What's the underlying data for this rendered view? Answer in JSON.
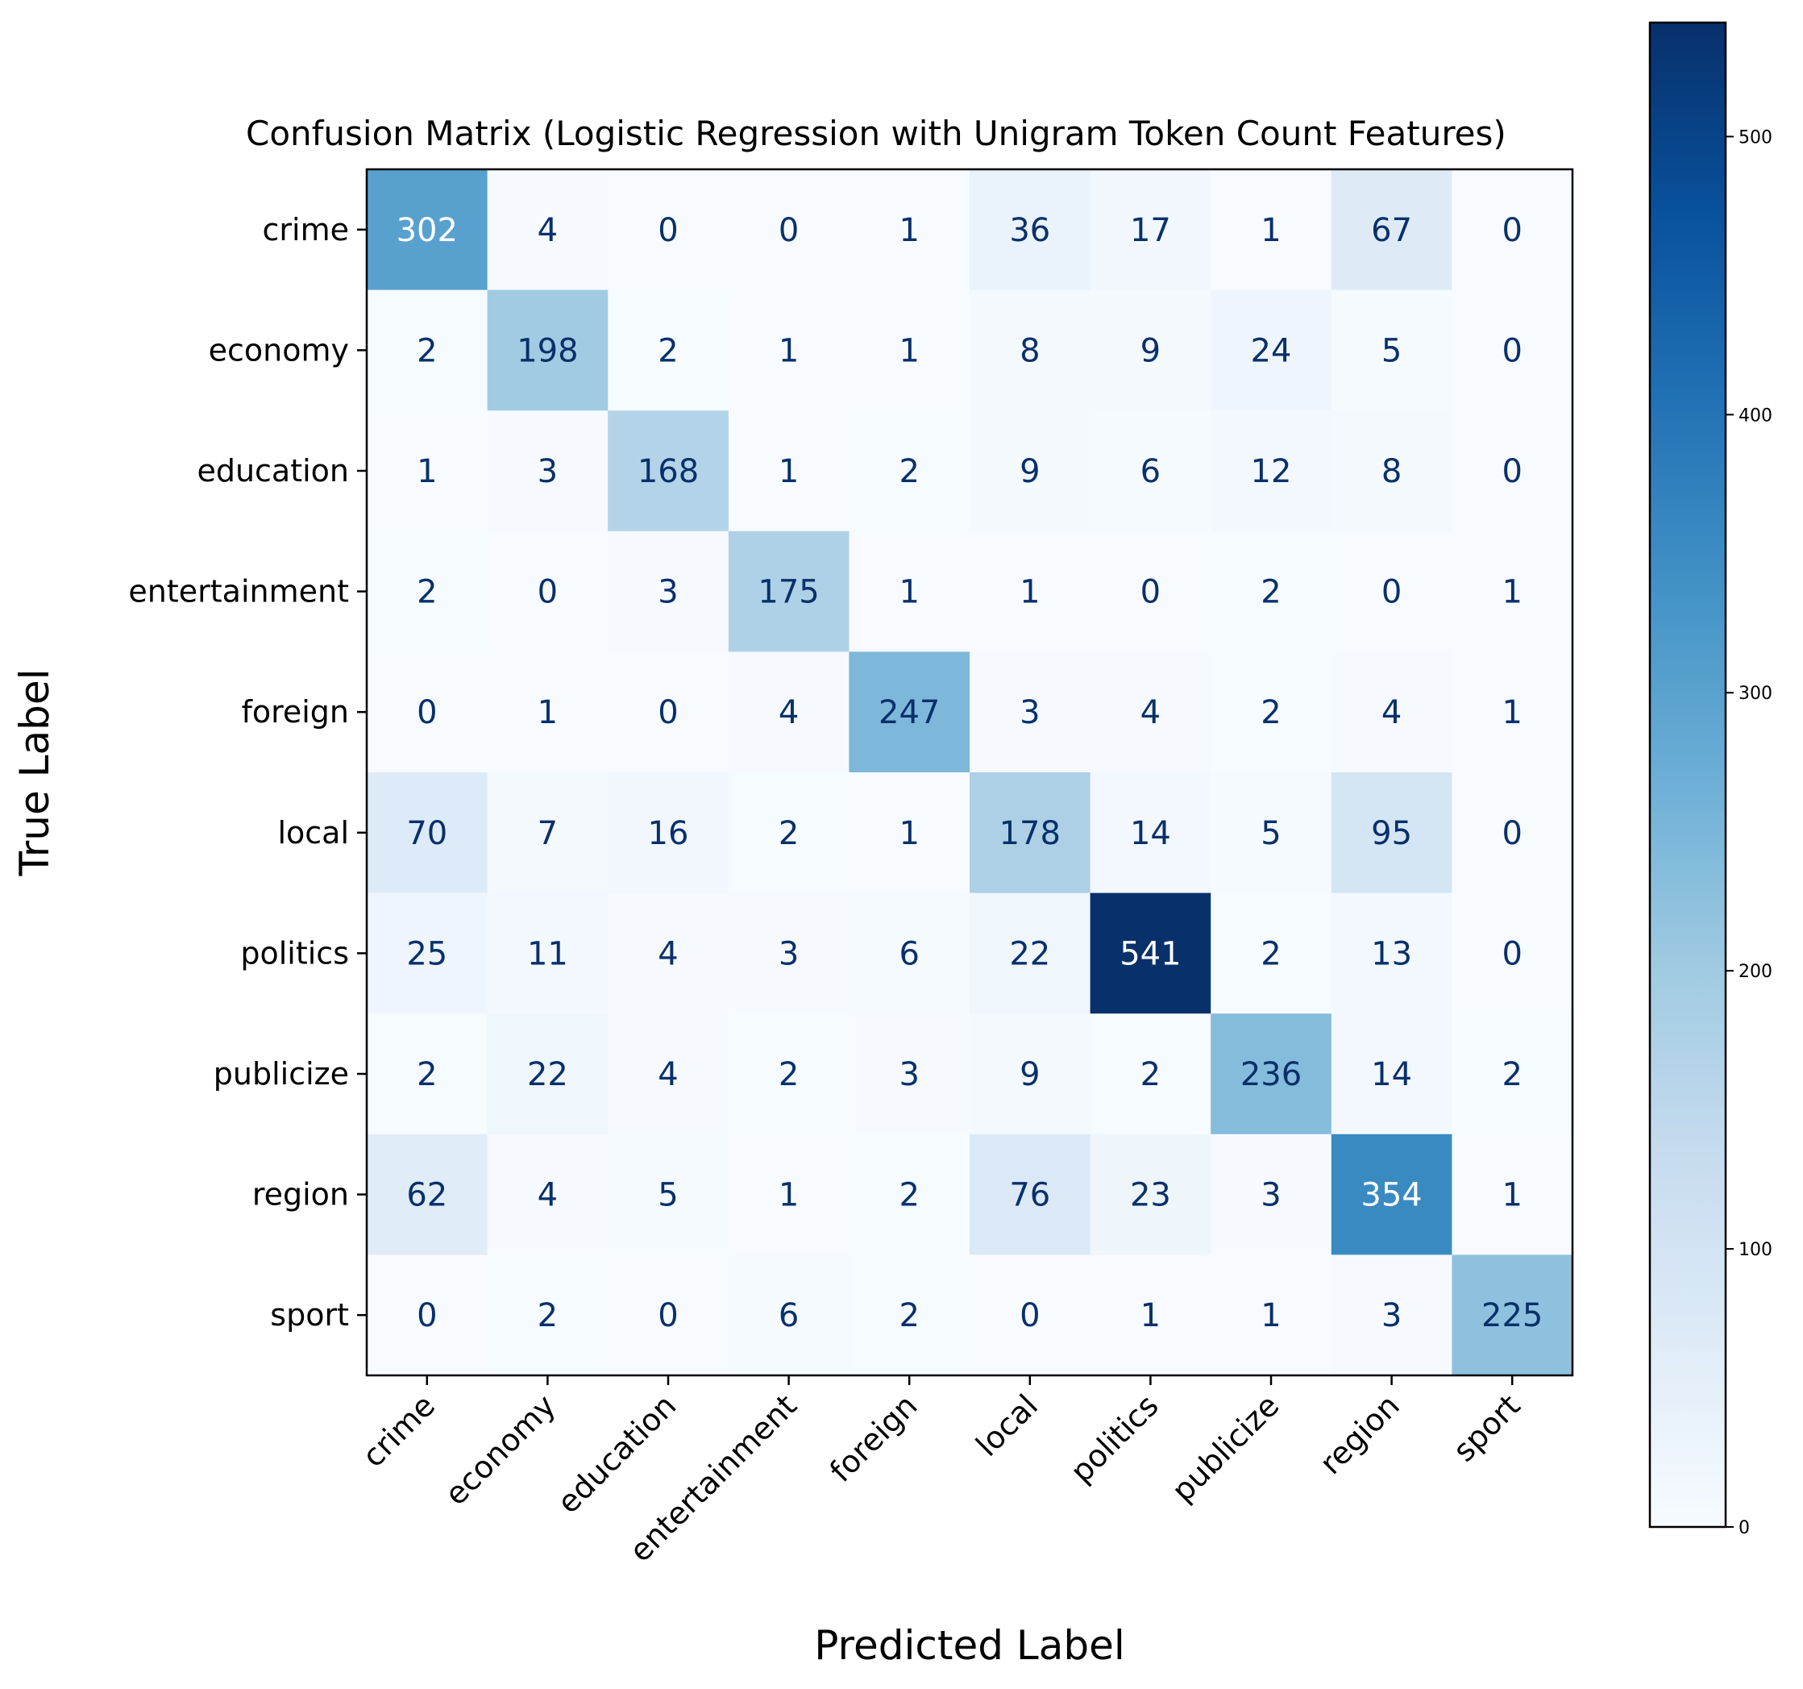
{
  "chart_data": {
    "type": "heatmap",
    "title": "Confusion Matrix (Logistic Regression with Unigram Token Count Features)",
    "xlabel": "Predicted Label",
    "ylabel": "True Label",
    "categories": [
      "crime",
      "economy",
      "education",
      "entertainment",
      "foreign",
      "local",
      "politics",
      "publicize",
      "region",
      "sport"
    ],
    "matrix": [
      [
        302,
        4,
        0,
        0,
        1,
        36,
        17,
        1,
        67,
        0
      ],
      [
        2,
        198,
        2,
        1,
        1,
        8,
        9,
        24,
        5,
        0
      ],
      [
        1,
        3,
        168,
        1,
        2,
        9,
        6,
        12,
        8,
        0
      ],
      [
        2,
        0,
        3,
        175,
        1,
        1,
        0,
        2,
        0,
        1
      ],
      [
        0,
        1,
        0,
        4,
        247,
        3,
        4,
        2,
        4,
        1
      ],
      [
        70,
        7,
        16,
        2,
        1,
        178,
        14,
        5,
        95,
        0
      ],
      [
        25,
        11,
        4,
        3,
        6,
        22,
        541,
        2,
        13,
        0
      ],
      [
        2,
        22,
        4,
        2,
        3,
        9,
        2,
        236,
        14,
        2
      ],
      [
        62,
        4,
        5,
        1,
        2,
        76,
        23,
        3,
        354,
        1
      ],
      [
        0,
        2,
        0,
        6,
        2,
        0,
        1,
        1,
        3,
        225
      ]
    ],
    "colormap": "Blues",
    "vmin": 0,
    "vmax": 541,
    "colorbar_ticks": [
      0,
      100,
      200,
      300,
      400,
      500
    ],
    "legend_placement": "right"
  }
}
